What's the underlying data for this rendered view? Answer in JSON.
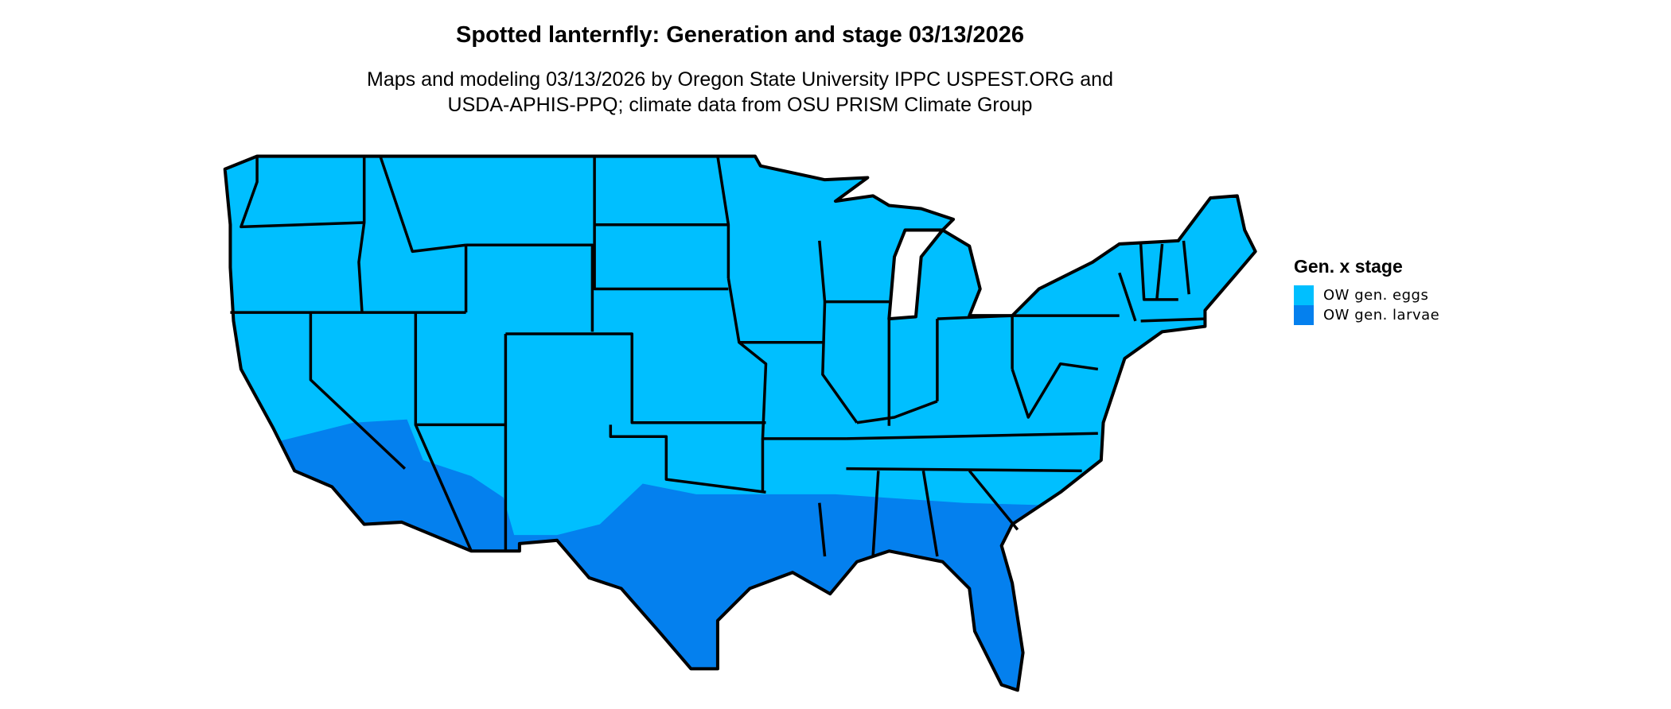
{
  "title": "Spotted lanternfly: Generation and stage 03/13/2026",
  "subtitle": {
    "line1": "Maps and modeling 03/13/2026 by Oregon State University IPPC USPEST.ORG and",
    "line2": "USDA-APHIS-PPQ; climate data from OSU PRISM Climate Group"
  },
  "legend": {
    "title": "Gen. x stage",
    "items": [
      {
        "label": "OW gen. eggs",
        "color": "#00BFFF"
      },
      {
        "label": "OW gen. larvae",
        "color": "#0480EE"
      }
    ]
  }
}
